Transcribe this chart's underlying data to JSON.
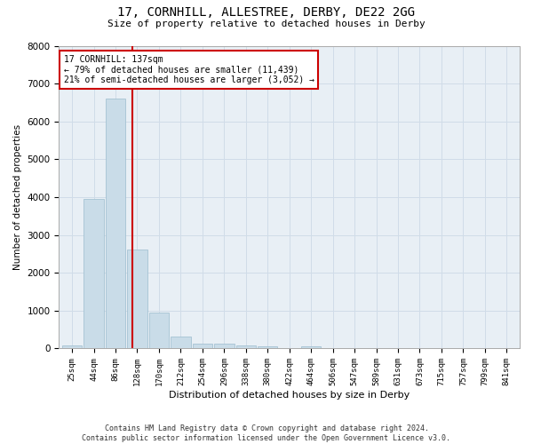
{
  "title": "17, CORNHILL, ALLESTREE, DERBY, DE22 2GG",
  "subtitle": "Size of property relative to detached houses in Derby",
  "xlabel": "Distribution of detached houses by size in Derby",
  "ylabel": "Number of detached properties",
  "bar_color": "#c9dce8",
  "bar_edge_color": "#9bbcce",
  "grid_color": "#d0dce8",
  "bg_color": "#e8eff5",
  "annotation_line_color": "#cc0000",
  "annotation_box_color": "#cc0000",
  "annotation_text_line1": "17 CORNHILL: 137sqm",
  "annotation_text_line2": "← 79% of detached houses are smaller (11,439)",
  "annotation_text_line3": "21% of semi-detached houses are larger (3,052) →",
  "footer_line1": "Contains HM Land Registry data © Crown copyright and database right 2024.",
  "footer_line2": "Contains public sector information licensed under the Open Government Licence v3.0.",
  "bin_labels": [
    "25sqm",
    "44sqm",
    "86sqm",
    "128sqm",
    "170sqm",
    "212sqm",
    "254sqm",
    "296sqm",
    "338sqm",
    "380sqm",
    "422sqm",
    "464sqm",
    "506sqm",
    "547sqm",
    "589sqm",
    "631sqm",
    "673sqm",
    "715sqm",
    "757sqm",
    "799sqm",
    "841sqm"
  ],
  "bin_values": [
    70,
    3950,
    6600,
    2620,
    960,
    320,
    130,
    120,
    80,
    60,
    0,
    60,
    0,
    0,
    0,
    0,
    0,
    0,
    0,
    0,
    0
  ],
  "ylim": [
    0,
    8000
  ],
  "yticks": [
    0,
    1000,
    2000,
    3000,
    4000,
    5000,
    6000,
    7000,
    8000
  ],
  "vline_x": 2.78
}
